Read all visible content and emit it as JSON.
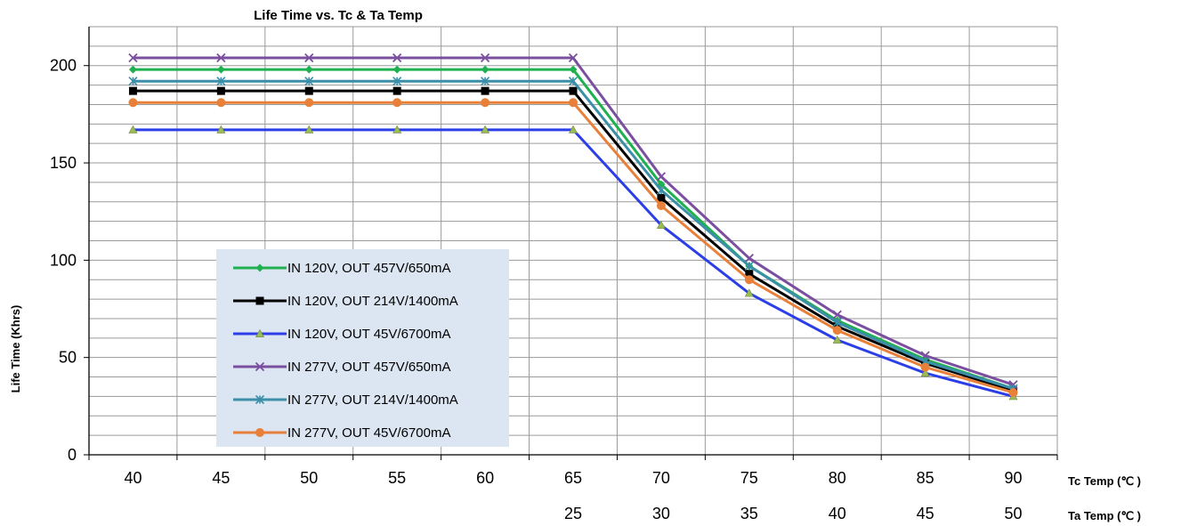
{
  "chart_data": {
    "type": "line",
    "title": "Life Time vs. Tc & Ta Temp",
    "ylabel": "Life Time (Khrs)",
    "xlabel": "Tc Temp (℃ )",
    "x2label": "Ta Temp (℃ )",
    "x": [
      40,
      45,
      50,
      55,
      60,
      65,
      70,
      75,
      80,
      85,
      90
    ],
    "x_ticks": [
      "40",
      "45",
      "50",
      "55",
      "60",
      "65",
      "70",
      "75",
      "80",
      "85",
      "90"
    ],
    "x2_ticks": [
      "",
      "",
      "",
      "",
      "",
      "25",
      "30",
      "35",
      "40",
      "45",
      "50"
    ],
    "y_ticks": [
      "0",
      "50",
      "100",
      "150",
      "200"
    ],
    "ylim": [
      0,
      220
    ],
    "grid": true,
    "legend_position": "left-center",
    "series": [
      {
        "name": "IN 120V, OUT 457V/650mA",
        "color": "#1fb050",
        "marker": "diamond",
        "values": [
          198,
          198,
          198,
          198,
          198,
          198,
          139,
          97,
          69,
          49,
          34
        ]
      },
      {
        "name": "IN 120V, OUT 214V/1400mA",
        "color": "#000000",
        "marker": "square",
        "values": [
          187,
          187,
          187,
          187,
          187,
          187,
          132,
          93,
          66,
          47,
          33
        ]
      },
      {
        "name": "IN 120V, OUT 45V/6700mA",
        "color": "#2b3ee8",
        "marker": "triangle",
        "values": [
          167,
          167,
          167,
          167,
          167,
          167,
          118,
          83,
          59,
          42,
          30
        ]
      },
      {
        "name": "IN 277V, OUT 457V/650mA",
        "color": "#7b4fa0",
        "marker": "x",
        "values": [
          204,
          204,
          204,
          204,
          204,
          204,
          143,
          101,
          72,
          51,
          36
        ]
      },
      {
        "name": "IN 277V, OUT 214V/1400mA",
        "color": "#3b8fa8",
        "marker": "star",
        "values": [
          192,
          192,
          192,
          192,
          192,
          192,
          136,
          97,
          68,
          48,
          34
        ]
      },
      {
        "name": "IN 277V, OUT 45V/6700mA",
        "color": "#e8803a",
        "marker": "circle",
        "values": [
          181,
          181,
          181,
          181,
          181,
          181,
          128,
          90,
          64,
          45,
          32
        ]
      }
    ]
  }
}
